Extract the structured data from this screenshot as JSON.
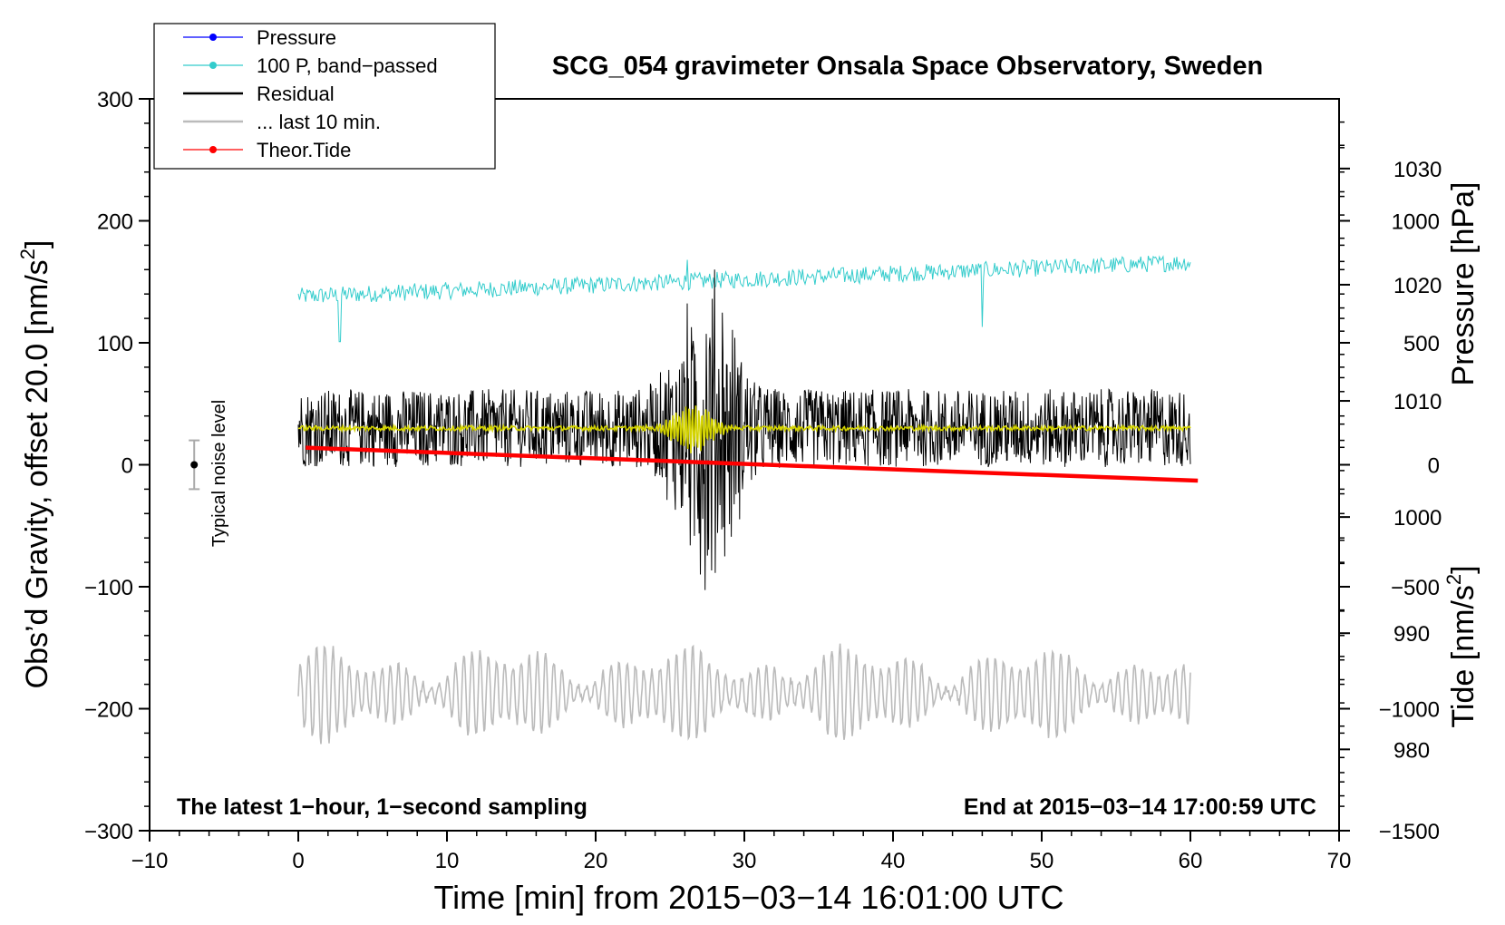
{
  "chart_data": {
    "type": "line",
    "title": "SCG_054 gravimeter Onsala Space Observatory, Sweden",
    "xlabel": "Time [min] from 2015−03−14 16:01:00 UTC",
    "ylabel_main": "Obs’d Gravity, offset 20.0 [nm/s",
    "ylabel_main_sup": "2",
    "ylabel_main_end": "]",
    "ylabel_pressure": "Pressure [hPa]",
    "ylabel_tide": "Tide [nm/s",
    "ylabel_tide_sup": "2",
    "ylabel_tide_end": "]",
    "xlim": [
      -10,
      70
    ],
    "ylim": [
      -300,
      300
    ],
    "pressure_lim": [
      973,
      1036
    ],
    "tide_lim": [
      -1500,
      1500
    ],
    "x_ticks": [
      "−10",
      "0",
      "10",
      "20",
      "30",
      "40",
      "50",
      "60",
      "70"
    ],
    "x_tick_values": [
      -10,
      0,
      10,
      20,
      30,
      40,
      50,
      60,
      70
    ],
    "y_ticks": [
      "300",
      "200",
      "100",
      "0",
      "−100",
      "−200",
      "−300"
    ],
    "y_tick_values": [
      300,
      200,
      100,
      0,
      -100,
      -200,
      -300
    ],
    "pressure_ticks": [
      "1030",
      "1020",
      "1010",
      "1000",
      "990",
      "980"
    ],
    "pressure_tick_values": [
      1030,
      1020,
      1010,
      1000,
      990,
      980
    ],
    "tide_ticks": [
      "1000",
      "500",
      "0",
      "−500",
      "−1000",
      "−1500"
    ],
    "tide_tick_values": [
      1000,
      500,
      0,
      -500,
      -1000,
      -1500
    ],
    "legend": [
      {
        "label": "Pressure",
        "color": "#0000ff",
        "marker": true
      },
      {
        "label": "100 P, band−passed",
        "color": "#33cccc",
        "marker": true
      },
      {
        "label": "Residual",
        "color": "#000000",
        "marker": false
      },
      {
        "label": "... last 10 min.",
        "color": "#bbbbbb",
        "marker": false
      },
      {
        "label": "Theor.Tide",
        "color": "#ff0000",
        "marker": true
      }
    ],
    "annotations": {
      "noise_label": "Typical noise level",
      "noise_x": -7,
      "noise_y": 0,
      "noise_err": 20,
      "bottom_left": "The latest 1−hour, 1−second sampling",
      "bottom_right": "End at 2015−03−14 17:00:59 UTC"
    },
    "series": [
      {
        "name": "100 P, band-passed",
        "color": "#33cccc",
        "x_range": [
          0,
          60
        ],
        "baseline_start": 138,
        "baseline_end": 166,
        "noise_amp": 7,
        "spikes": [
          {
            "x": 2.8,
            "y": 101
          },
          {
            "x": 26.2,
            "y": 168
          },
          {
            "x": 46.0,
            "y": 113
          }
        ]
      },
      {
        "name": "Residual",
        "color": "#000000",
        "x_range": [
          0,
          60
        ],
        "center": 30,
        "noise_amp": 32,
        "burst_center": 27.5,
        "burst_width": 2.2,
        "burst_amp": 125,
        "extremes": [
          -104,
          168
        ]
      },
      {
        "name": "Residual (smoothed)",
        "color": "#d4d400",
        "x_range": [
          0,
          60
        ],
        "center": 30,
        "noise_amp": 2,
        "burst_amp": 20,
        "burst_center": 26.5
      },
      {
        "name": "... last 10 min.",
        "color": "#bbbbbb",
        "x_range": [
          0,
          60
        ],
        "center": -187,
        "oscillation_amp": 40,
        "period_min": 0.55
      },
      {
        "name": "Theor.Tide",
        "color": "#ff0000",
        "x": [
          0.5,
          60.5
        ],
        "tide_nm_s2": [
          70,
          -65
        ]
      }
    ]
  }
}
